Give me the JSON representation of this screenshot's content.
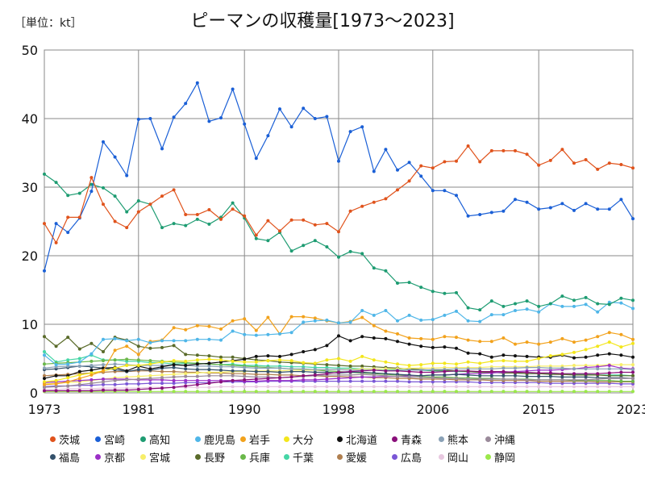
{
  "unit_label": "［単位：kt］",
  "chart_data": {
    "type": "line",
    "title": "ピーマンの収穫量[1973〜2023]",
    "xlabel": "",
    "ylabel": "",
    "xlim": [
      1973,
      2023
    ],
    "ylim": [
      0,
      50
    ],
    "x_ticks": [
      "1973",
      "1981",
      "1990",
      "1998",
      "2006",
      "2015",
      "2023"
    ],
    "y_ticks": [
      "0",
      "10",
      "20",
      "30",
      "40",
      "50"
    ],
    "grid": true,
    "legend_position": "bottom",
    "x": [
      1973,
      1974,
      1975,
      1976,
      1977,
      1978,
      1979,
      1980,
      1981,
      1982,
      1983,
      1984,
      1985,
      1986,
      1987,
      1988,
      1989,
      1990,
      1991,
      1992,
      1993,
      1994,
      1995,
      1996,
      1997,
      1998,
      1999,
      2000,
      2001,
      2002,
      2003,
      2004,
      2005,
      2006,
      2007,
      2008,
      2009,
      2010,
      2011,
      2012,
      2013,
      2014,
      2015,
      2016,
      2017,
      2018,
      2019,
      2020,
      2021,
      2022,
      2023
    ],
    "series": [
      {
        "name": "茨城",
        "color": "#e0531c",
        "values": [
          24.7,
          21.9,
          25.6,
          25.6,
          31.4,
          27.5,
          25.0,
          24.1,
          26.4,
          27.5,
          28.7,
          29.6,
          26.0,
          26.0,
          26.7,
          25.3,
          26.8,
          25.8,
          23.0,
          25.1,
          23.6,
          25.2,
          25.2,
          24.5,
          24.7,
          23.5,
          26.5,
          27.2,
          27.8,
          28.3,
          29.6,
          30.9,
          33.1,
          32.8,
          33.7,
          33.8,
          36.0,
          33.7,
          35.3,
          35.3,
          35.3,
          34.8,
          33.2,
          33.9,
          35.5,
          33.5,
          34.0,
          32.6,
          33.5,
          33.3,
          32.8
        ]
      },
      {
        "name": "宮崎",
        "color": "#1a5fd6",
        "values": [
          17.8,
          24.7,
          23.4,
          25.5,
          29.4,
          36.6,
          34.4,
          31.7,
          39.9,
          40.0,
          35.6,
          40.2,
          42.2,
          45.2,
          39.6,
          40.1,
          44.3,
          39.2,
          34.2,
          37.5,
          41.4,
          38.8,
          41.5,
          40.0,
          40.3,
          33.8,
          38.1,
          38.8,
          32.3,
          35.5,
          32.5,
          33.6,
          31.6,
          29.5,
          29.5,
          28.8,
          25.8,
          26.0,
          26.3,
          26.5,
          28.2,
          27.8,
          26.8,
          27.0,
          27.6,
          26.6,
          27.6,
          26.8,
          26.8,
          28.2,
          25.4
        ]
      },
      {
        "name": "高知",
        "color": "#1e9c72",
        "values": [
          31.9,
          30.7,
          28.8,
          29.1,
          30.4,
          29.9,
          28.7,
          26.4,
          28.0,
          27.5,
          24.1,
          24.7,
          24.4,
          25.3,
          24.6,
          25.6,
          27.7,
          25.5,
          22.5,
          22.2,
          23.4,
          20.7,
          21.5,
          22.2,
          21.3,
          19.8,
          20.6,
          20.3,
          18.2,
          17.8,
          16.0,
          16.1,
          15.4,
          14.8,
          14.5,
          14.6,
          12.4,
          12.1,
          13.4,
          12.6,
          13.0,
          13.4,
          12.6,
          13.0,
          14.1,
          13.5,
          13.9,
          13.0,
          12.9,
          13.8,
          13.5
        ]
      },
      {
        "name": "鹿児島",
        "color": "#4fb6e8",
        "values": [
          5.5,
          4.1,
          4.2,
          4.5,
          5.7,
          7.8,
          7.9,
          7.6,
          7.8,
          7.3,
          7.6,
          7.6,
          7.6,
          7.8,
          7.8,
          7.7,
          9.0,
          8.5,
          8.4,
          8.5,
          8.6,
          8.8,
          10.3,
          10.5,
          10.6,
          10.2,
          10.3,
          12.0,
          11.3,
          12.0,
          10.5,
          11.3,
          10.6,
          10.7,
          11.3,
          11.9,
          10.5,
          10.4,
          11.4,
          11.4,
          12.0,
          12.2,
          11.8,
          13.0,
          12.6,
          12.6,
          12.9,
          11.8,
          13.2,
          13.1,
          12.3
        ]
      },
      {
        "name": "岩手",
        "color": "#f2a21c",
        "values": [
          1.2,
          1.3,
          1.6,
          2.1,
          2.6,
          3.2,
          6.2,
          6.8,
          5.6,
          7.5,
          7.7,
          9.5,
          9.2,
          9.8,
          9.7,
          9.3,
          10.5,
          10.8,
          9.1,
          11.0,
          8.6,
          11.1,
          11.1,
          10.9,
          10.5,
          10.2,
          10.4,
          11.0,
          9.8,
          9.0,
          8.6,
          8.0,
          7.9,
          7.8,
          8.2,
          8.1,
          7.7,
          7.5,
          7.5,
          8.0,
          7.1,
          7.4,
          7.1,
          7.4,
          7.9,
          7.4,
          7.7,
          8.2,
          8.8,
          8.5,
          7.8
        ]
      },
      {
        "name": "大分",
        "color": "#f3e61c",
        "values": [
          1.6,
          1.8,
          2.2,
          2.6,
          2.9,
          3.2,
          3.6,
          4.0,
          4.0,
          4.2,
          4.5,
          4.7,
          4.6,
          4.8,
          4.9,
          4.8,
          4.6,
          4.5,
          4.5,
          4.7,
          4.8,
          4.7,
          4.4,
          4.3,
          4.8,
          5.0,
          4.6,
          5.3,
          4.8,
          4.5,
          4.2,
          4.0,
          4.1,
          4.3,
          4.3,
          4.2,
          4.5,
          4.3,
          4.6,
          4.7,
          4.6,
          4.6,
          5.0,
          5.4,
          5.6,
          5.9,
          6.3,
          6.8,
          7.4,
          6.7,
          7.2
        ]
      },
      {
        "name": "北海道",
        "color": "#111111",
        "values": [
          2.1,
          2.5,
          2.5,
          3.1,
          3.3,
          3.6,
          3.7,
          3.2,
          3.9,
          3.5,
          3.8,
          4.1,
          4.0,
          4.2,
          4.3,
          4.5,
          4.7,
          4.9,
          5.3,
          5.4,
          5.3,
          5.6,
          6.0,
          6.3,
          6.9,
          8.3,
          7.6,
          8.2,
          8.0,
          7.9,
          7.5,
          7.1,
          6.8,
          6.6,
          6.7,
          6.5,
          5.8,
          5.7,
          5.2,
          5.5,
          5.4,
          5.3,
          5.2,
          5.2,
          5.5,
          5.1,
          5.2,
          5.5,
          5.7,
          5.5,
          5.2
        ]
      },
      {
        "name": "青森",
        "color": "#8a0f7a",
        "values": [
          0.3,
          0.3,
          0.3,
          0.3,
          0.3,
          0.4,
          0.4,
          0.4,
          0.5,
          0.6,
          0.7,
          0.8,
          1.0,
          1.2,
          1.4,
          1.6,
          1.8,
          1.9,
          2.0,
          2.1,
          2.2,
          2.3,
          2.5,
          2.6,
          2.8,
          3.0,
          3.1,
          3.2,
          3.3,
          3.2,
          3.2,
          3.1,
          3.0,
          3.0,
          3.1,
          3.2,
          3.2,
          3.1,
          3.1,
          3.1,
          3.0,
          3.0,
          2.9,
          2.9,
          2.8,
          2.8,
          2.8,
          2.8,
          2.9,
          3.0,
          3.0
        ]
      },
      {
        "name": "熊本",
        "color": "#8aa1b6",
        "values": [
          3.6,
          3.8,
          3.9,
          3.9,
          4.0,
          4.1,
          4.2,
          4.1,
          4.0,
          4.0,
          4.0,
          4.1,
          4.0,
          3.9,
          3.9,
          3.8,
          3.8,
          3.7,
          3.6,
          3.6,
          3.6,
          3.5,
          3.5,
          3.4,
          3.4,
          3.4,
          3.3,
          3.3,
          3.3,
          3.2,
          3.3,
          3.3,
          3.3,
          3.4,
          3.4,
          3.5,
          3.5,
          3.5,
          3.5,
          3.6,
          3.6,
          3.7,
          3.7,
          3.6,
          3.6,
          3.5,
          3.5,
          3.5,
          3.5,
          3.5,
          3.4
        ]
      },
      {
        "name": "沖縄",
        "color": "#9a8a9a",
        "values": [
          0.8,
          0.9,
          1.0,
          1.2,
          1.4,
          1.6,
          1.8,
          1.9,
          2.0,
          2.1,
          2.2,
          2.3,
          2.4,
          2.4,
          2.5,
          2.5,
          2.5,
          2.4,
          2.3,
          2.3,
          2.2,
          2.3,
          2.4,
          2.5,
          2.6,
          2.6,
          2.6,
          2.7,
          2.6,
          2.5,
          2.4,
          2.3,
          2.2,
          2.2,
          2.1,
          2.1,
          2.0,
          2.0,
          2.0,
          2.0,
          2.0,
          1.9,
          1.9,
          1.9,
          1.9,
          1.9,
          1.9,
          2.0,
          2.1,
          2.1,
          2.1
        ]
      },
      {
        "name": "福島",
        "color": "#34516b",
        "values": [
          3.4,
          3.5,
          3.7,
          3.9,
          3.8,
          3.6,
          3.4,
          3.1,
          3.4,
          3.3,
          3.6,
          3.7,
          3.5,
          3.4,
          3.4,
          3.3,
          3.2,
          3.2,
          3.1,
          3.1,
          3.0,
          3.1,
          3.1,
          3.0,
          3.0,
          2.9,
          3.0,
          3.0,
          2.9,
          2.8,
          2.7,
          2.6,
          2.5,
          2.6,
          2.6,
          2.7,
          2.6,
          2.5,
          2.5,
          2.5,
          2.5,
          2.4,
          2.4,
          2.4,
          2.3,
          2.3,
          2.3,
          2.2,
          2.2,
          2.2,
          2.1
        ]
      },
      {
        "name": "京都",
        "color": "#9b2fc7",
        "values": [
          1.5,
          1.6,
          1.7,
          1.8,
          1.9,
          2.0,
          2.0,
          2.0,
          1.9,
          1.9,
          1.9,
          1.8,
          1.8,
          1.8,
          1.8,
          1.8,
          1.8,
          1.7,
          1.7,
          1.8,
          1.8,
          1.8,
          1.9,
          1.9,
          2.0,
          2.1,
          2.2,
          2.3,
          2.3,
          2.4,
          2.4,
          2.5,
          2.5,
          2.6,
          2.6,
          2.7,
          2.8,
          2.8,
          2.9,
          3.0,
          3.1,
          3.2,
          3.3,
          3.3,
          3.4,
          3.5,
          3.7,
          3.8,
          4.0,
          3.6,
          3.5
        ]
      },
      {
        "name": "宮城",
        "color": "#f7ee6a",
        "values": [
          1.3,
          1.4,
          1.5,
          1.6,
          1.8,
          2.0,
          2.2,
          2.3,
          2.4,
          2.5,
          2.6,
          2.7,
          2.8,
          2.9,
          3.0,
          3.0,
          3.1,
          3.1,
          3.2,
          3.2,
          3.2,
          3.3,
          3.3,
          3.3,
          3.4,
          3.4,
          3.4,
          3.5,
          3.5,
          3.5,
          3.5,
          3.6,
          3.6,
          3.6,
          3.7,
          3.7,
          3.7,
          3.7,
          3.8,
          3.8,
          3.8,
          3.8,
          3.9,
          3.9,
          3.9,
          4.0,
          4.0,
          4.0,
          4.1,
          4.1,
          4.1
        ]
      },
      {
        "name": "長野",
        "color": "#5a6b2a",
        "values": [
          8.2,
          6.8,
          8.1,
          6.4,
          7.2,
          6.0,
          8.1,
          7.7,
          6.8,
          6.5,
          6.6,
          6.9,
          5.6,
          5.5,
          5.4,
          5.2,
          5.2,
          5.0,
          4.8,
          4.7,
          4.5,
          4.4,
          4.3,
          4.2,
          4.1,
          4.0,
          3.9,
          3.9,
          3.8,
          3.7,
          3.6,
          3.5,
          3.4,
          3.3,
          3.3,
          3.2,
          3.1,
          3.0,
          3.0,
          2.9,
          2.9,
          2.8,
          2.8,
          2.7,
          2.7,
          2.6,
          2.6,
          2.6,
          2.5,
          2.5,
          2.5
        ]
      },
      {
        "name": "兵庫",
        "color": "#6ab84a",
        "values": [
          4.2,
          4.3,
          4.4,
          4.5,
          4.6,
          4.7,
          4.8,
          4.9,
          4.8,
          4.7,
          4.6,
          4.5,
          4.4,
          4.3,
          4.2,
          4.1,
          4.0,
          3.9,
          3.8,
          3.7,
          3.6,
          3.5,
          3.4,
          3.3,
          3.2,
          3.1,
          3.0,
          2.9,
          2.8,
          2.7,
          2.6,
          2.5,
          2.4,
          2.3,
          2.3,
          2.2,
          2.2,
          2.1,
          2.1,
          2.0,
          2.0,
          2.0,
          1.9,
          1.9,
          1.9,
          1.8,
          1.8,
          1.8,
          1.8,
          1.7,
          1.7
        ]
      },
      {
        "name": "千葉",
        "color": "#45d6a6",
        "values": [
          6.0,
          4.5,
          4.8,
          5.0,
          5.5,
          4.8,
          4.8,
          4.6,
          4.6,
          4.4,
          4.4,
          4.2,
          4.3,
          4.3,
          4.2,
          4.1,
          4.2,
          4.0,
          4.0,
          3.9,
          3.9,
          3.8,
          3.8,
          3.7,
          3.7,
          3.6,
          3.6,
          3.5,
          3.5,
          3.4,
          3.4,
          3.3,
          3.3,
          3.2,
          3.2,
          3.1,
          3.1,
          3.0,
          3.0,
          2.9,
          2.9,
          2.8,
          2.8,
          2.8,
          2.7,
          2.7,
          2.7,
          2.6,
          2.6,
          2.6,
          2.5
        ]
      },
      {
        "name": "愛媛",
        "color": "#b07f4f",
        "values": [
          2.5,
          2.6,
          2.7,
          2.8,
          2.9,
          3.0,
          3.1,
          3.1,
          3.2,
          3.2,
          3.1,
          3.1,
          3.0,
          3.0,
          2.9,
          2.9,
          2.8,
          2.8,
          2.7,
          2.7,
          2.6,
          2.6,
          2.5,
          2.5,
          2.4,
          2.4,
          2.3,
          2.3,
          2.2,
          2.2,
          2.1,
          2.1,
          2.0,
          2.0,
          2.0,
          1.9,
          1.9,
          1.9,
          1.8,
          1.8,
          1.8,
          1.8,
          1.7,
          1.7,
          1.7,
          1.7,
          1.7,
          1.6,
          1.6,
          1.6,
          1.6
        ]
      },
      {
        "name": "広島",
        "color": "#7a56d6",
        "values": [
          0.9,
          1.0,
          1.0,
          1.1,
          1.1,
          1.2,
          1.2,
          1.3,
          1.3,
          1.4,
          1.4,
          1.4,
          1.5,
          1.5,
          1.5,
          1.6,
          1.6,
          1.6,
          1.6,
          1.7,
          1.7,
          1.7,
          1.7,
          1.7,
          1.7,
          1.7,
          1.7,
          1.7,
          1.7,
          1.7,
          1.7,
          1.6,
          1.6,
          1.6,
          1.6,
          1.6,
          1.6,
          1.5,
          1.5,
          1.5,
          1.5,
          1.5,
          1.5,
          1.4,
          1.4,
          1.4,
          1.4,
          1.4,
          1.4,
          1.3,
          1.3
        ]
      },
      {
        "name": "岡山",
        "color": "#e8c8e0",
        "values": [
          0.5,
          0.5,
          0.6,
          0.6,
          0.6,
          0.7,
          0.7,
          0.7,
          0.7,
          0.8,
          0.8,
          0.8,
          0.8,
          0.8,
          0.8,
          0.9,
          0.9,
          0.9,
          0.9,
          0.9,
          0.9,
          0.9,
          0.9,
          0.9,
          0.9,
          0.9,
          0.9,
          0.9,
          0.9,
          0.9,
          0.9,
          0.9,
          0.9,
          0.9,
          0.9,
          0.9,
          0.9,
          0.9,
          0.9,
          0.9,
          0.9,
          0.9,
          0.9,
          0.9,
          0.9,
          0.9,
          0.9,
          0.9,
          0.9,
          0.9,
          0.9
        ]
      },
      {
        "name": "静岡",
        "color": "#9be84a",
        "values": [
          0.2,
          0.2,
          0.2,
          0.2,
          0.2,
          0.2,
          0.2,
          0.2,
          0.2,
          0.2,
          0.2,
          0.2,
          0.2,
          0.2,
          0.2,
          0.2,
          0.2,
          0.2,
          0.2,
          0.2,
          0.2,
          0.2,
          0.2,
          0.2,
          0.2,
          0.2,
          0.2,
          0.2,
          0.2,
          0.2,
          0.2,
          0.2,
          0.2,
          0.2,
          0.2,
          0.2,
          0.2,
          0.2,
          0.2,
          0.2,
          0.2,
          0.2,
          0.2,
          0.2,
          0.2,
          0.2,
          0.2,
          0.2,
          0.2,
          0.2,
          0.2
        ]
      }
    ]
  }
}
